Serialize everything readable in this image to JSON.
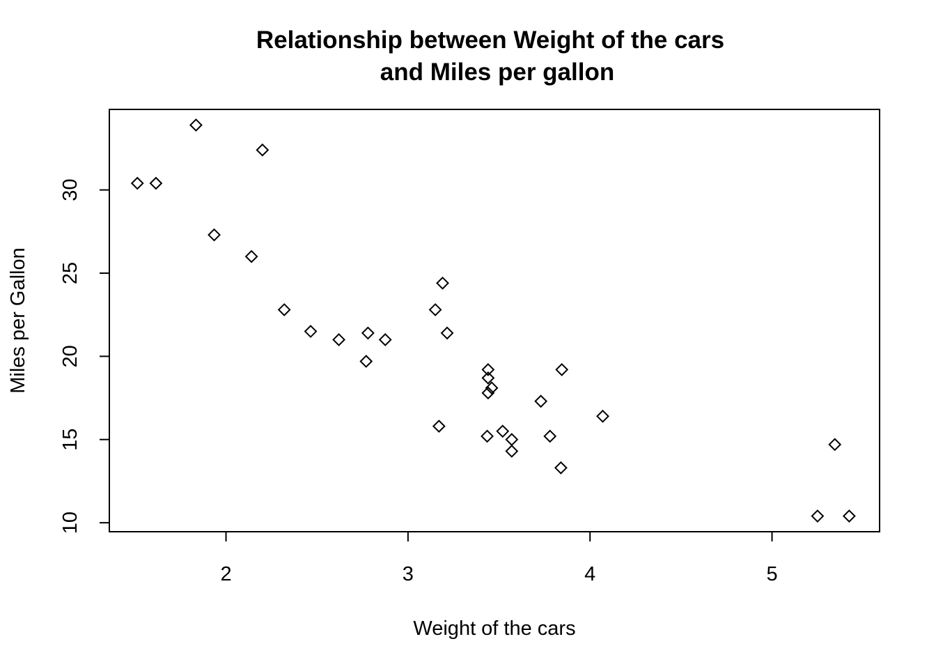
{
  "chart_data": {
    "type": "scatter",
    "title": "Relationship between Weight of the cars\nand Miles per gallon",
    "title_lines": [
      "Relationship between Weight of the cars",
      "and Miles per gallon"
    ],
    "xlabel": "Weight of the cars",
    "ylabel": "Miles per Gallon",
    "xlim": [
      1.359,
      5.591
    ],
    "ylim": [
      9.46,
      34.84
    ],
    "xticks": [
      2,
      3,
      4,
      5
    ],
    "yticks": [
      10,
      15,
      20,
      25,
      30
    ],
    "marker": "diamond",
    "grid": false,
    "points": [
      {
        "x": 2.62,
        "y": 21.0
      },
      {
        "x": 2.875,
        "y": 21.0
      },
      {
        "x": 2.32,
        "y": 22.8
      },
      {
        "x": 3.215,
        "y": 21.4
      },
      {
        "x": 3.44,
        "y": 18.7
      },
      {
        "x": 3.46,
        "y": 18.1
      },
      {
        "x": 3.57,
        "y": 14.3
      },
      {
        "x": 3.19,
        "y": 24.4
      },
      {
        "x": 3.15,
        "y": 22.8
      },
      {
        "x": 3.44,
        "y": 19.2
      },
      {
        "x": 3.44,
        "y": 17.8
      },
      {
        "x": 4.07,
        "y": 16.4
      },
      {
        "x": 3.73,
        "y": 17.3
      },
      {
        "x": 3.78,
        "y": 15.2
      },
      {
        "x": 5.25,
        "y": 10.4
      },
      {
        "x": 5.424,
        "y": 10.4
      },
      {
        "x": 5.345,
        "y": 14.7
      },
      {
        "x": 2.2,
        "y": 32.4
      },
      {
        "x": 1.615,
        "y": 30.4
      },
      {
        "x": 1.835,
        "y": 33.9
      },
      {
        "x": 2.465,
        "y": 21.5
      },
      {
        "x": 3.52,
        "y": 15.5
      },
      {
        "x": 3.435,
        "y": 15.2
      },
      {
        "x": 3.84,
        "y": 13.3
      },
      {
        "x": 3.845,
        "y": 19.2
      },
      {
        "x": 1.935,
        "y": 27.3
      },
      {
        "x": 2.14,
        "y": 26.0
      },
      {
        "x": 1.513,
        "y": 30.4
      },
      {
        "x": 3.17,
        "y": 15.8
      },
      {
        "x": 2.77,
        "y": 19.7
      },
      {
        "x": 3.57,
        "y": 15.0
      },
      {
        "x": 2.78,
        "y": 21.4
      }
    ]
  }
}
